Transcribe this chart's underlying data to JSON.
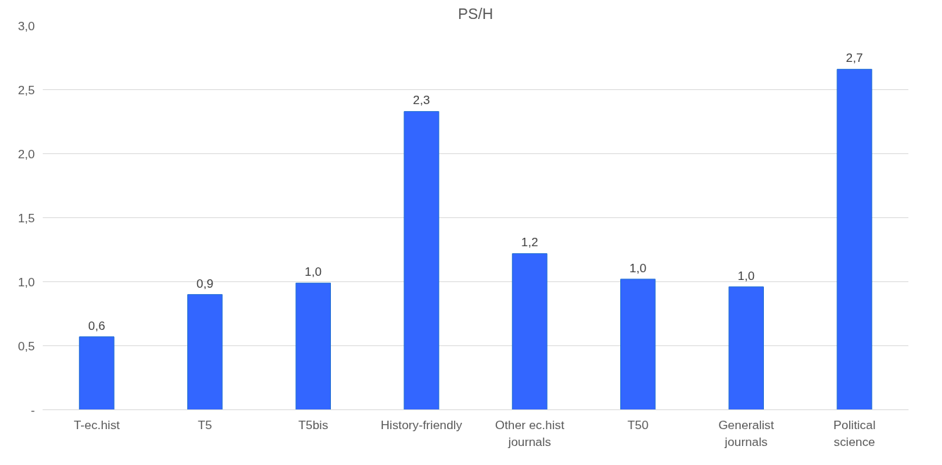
{
  "chart_data": {
    "type": "bar",
    "title": "PS/H",
    "categories": [
      "T-ec.hist",
      "T5",
      "T5bis",
      "History-friendly",
      "Other ec.hist\njournals",
      "T50",
      "Generalist\njournals",
      "Political\nscience"
    ],
    "values": [
      0.57,
      0.9,
      0.99,
      2.33,
      1.22,
      1.02,
      0.96,
      2.66
    ],
    "value_labels": [
      "0,6",
      "0,9",
      "1,0",
      "2,3",
      "1,2",
      "1,0",
      "1,0",
      "2,7"
    ],
    "color": "#3366ff",
    "ylim": [
      0,
      3
    ],
    "yticks": [
      {
        "value": 0,
        "label": "-"
      },
      {
        "value": 0.5,
        "label": "0,5"
      },
      {
        "value": 1,
        "label": "1,0"
      },
      {
        "value": 1.5,
        "label": "1,5"
      },
      {
        "value": 2,
        "label": "2,0"
      },
      {
        "value": 2.5,
        "label": "2,5"
      },
      {
        "value": 3,
        "label": "3,0"
      }
    ],
    "grid": "y"
  }
}
